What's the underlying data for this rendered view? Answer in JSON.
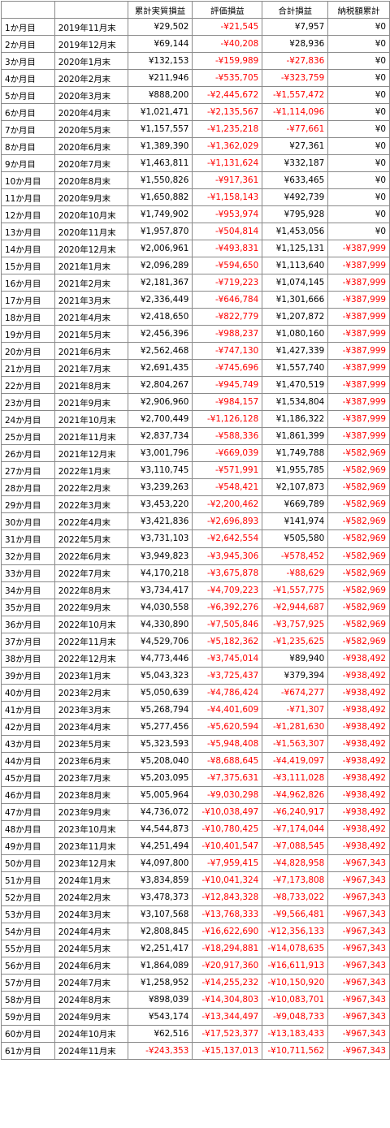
{
  "headers": [
    "",
    "",
    "累計実質損益",
    "評価損益",
    "合計損益",
    "納税額累計"
  ],
  "rows": [
    [
      "1か月目",
      "2019年11月末",
      "¥29,502",
      "-¥21,545",
      "¥7,957",
      "¥0"
    ],
    [
      "2か月目",
      "2019年12月末",
      "¥69,144",
      "-¥40,208",
      "¥28,936",
      "¥0"
    ],
    [
      "3か月目",
      "2020年1月末",
      "¥132,153",
      "-¥159,989",
      "-¥27,836",
      "¥0"
    ],
    [
      "4か月目",
      "2020年2月末",
      "¥211,946",
      "-¥535,705",
      "-¥323,759",
      "¥0"
    ],
    [
      "5か月目",
      "2020年3月末",
      "¥888,200",
      "-¥2,445,672",
      "-¥1,557,472",
      "¥0"
    ],
    [
      "6か月目",
      "2020年4月末",
      "¥1,021,471",
      "-¥2,135,567",
      "-¥1,114,096",
      "¥0"
    ],
    [
      "7か月目",
      "2020年5月末",
      "¥1,157,557",
      "-¥1,235,218",
      "-¥77,661",
      "¥0"
    ],
    [
      "8か月目",
      "2020年6月末",
      "¥1,389,390",
      "-¥1,362,029",
      "¥27,361",
      "¥0"
    ],
    [
      "9か月目",
      "2020年7月末",
      "¥1,463,811",
      "-¥1,131,624",
      "¥332,187",
      "¥0"
    ],
    [
      "10か月目",
      "2020年8月末",
      "¥1,550,826",
      "-¥917,361",
      "¥633,465",
      "¥0"
    ],
    [
      "11か月目",
      "2020年9月末",
      "¥1,650,882",
      "-¥1,158,143",
      "¥492,739",
      "¥0"
    ],
    [
      "12か月目",
      "2020年10月末",
      "¥1,749,902",
      "-¥953,974",
      "¥795,928",
      "¥0"
    ],
    [
      "13か月目",
      "2020年11月末",
      "¥1,957,870",
      "-¥504,814",
      "¥1,453,056",
      "¥0"
    ],
    [
      "14か月目",
      "2020年12月末",
      "¥2,006,961",
      "-¥493,831",
      "¥1,125,131",
      "-¥387,999"
    ],
    [
      "15か月目",
      "2021年1月末",
      "¥2,096,289",
      "-¥594,650",
      "¥1,113,640",
      "-¥387,999"
    ],
    [
      "16か月目",
      "2021年2月末",
      "¥2,181,367",
      "-¥719,223",
      "¥1,074,145",
      "-¥387,999"
    ],
    [
      "17か月目",
      "2021年3月末",
      "¥2,336,449",
      "-¥646,784",
      "¥1,301,666",
      "-¥387,999"
    ],
    [
      "18か月目",
      "2021年4月末",
      "¥2,418,650",
      "-¥822,779",
      "¥1,207,872",
      "-¥387,999"
    ],
    [
      "19か月目",
      "2021年5月末",
      "¥2,456,396",
      "-¥988,237",
      "¥1,080,160",
      "-¥387,999"
    ],
    [
      "20か月目",
      "2021年6月末",
      "¥2,562,468",
      "-¥747,130",
      "¥1,427,339",
      "-¥387,999"
    ],
    [
      "21か月目",
      "2021年7月末",
      "¥2,691,435",
      "-¥745,696",
      "¥1,557,740",
      "-¥387,999"
    ],
    [
      "22か月目",
      "2021年8月末",
      "¥2,804,267",
      "-¥945,749",
      "¥1,470,519",
      "-¥387,999"
    ],
    [
      "23か月目",
      "2021年9月末",
      "¥2,906,960",
      "-¥984,157",
      "¥1,534,804",
      "-¥387,999"
    ],
    [
      "24か月目",
      "2021年10月末",
      "¥2,700,449",
      "-¥1,126,128",
      "¥1,186,322",
      "-¥387,999"
    ],
    [
      "25か月目",
      "2021年11月末",
      "¥2,837,734",
      "-¥588,336",
      "¥1,861,399",
      "-¥387,999"
    ],
    [
      "26か月目",
      "2021年12月末",
      "¥3,001,796",
      "-¥669,039",
      "¥1,749,788",
      "-¥582,969"
    ],
    [
      "27か月目",
      "2022年1月末",
      "¥3,110,745",
      "-¥571,991",
      "¥1,955,785",
      "-¥582,969"
    ],
    [
      "28か月目",
      "2022年2月末",
      "¥3,239,263",
      "-¥548,421",
      "¥2,107,873",
      "-¥582,969"
    ],
    [
      "29か月目",
      "2022年3月末",
      "¥3,453,220",
      "-¥2,200,462",
      "¥669,789",
      "-¥582,969"
    ],
    [
      "30か月目",
      "2022年4月末",
      "¥3,421,836",
      "-¥2,696,893",
      "¥141,974",
      "-¥582,969"
    ],
    [
      "31か月目",
      "2022年5月末",
      "¥3,731,103",
      "-¥2,642,554",
      "¥505,580",
      "-¥582,969"
    ],
    [
      "32か月目",
      "2022年6月末",
      "¥3,949,823",
      "-¥3,945,306",
      "-¥578,452",
      "-¥582,969"
    ],
    [
      "33か月目",
      "2022年7月末",
      "¥4,170,218",
      "-¥3,675,878",
      "-¥88,629",
      "-¥582,969"
    ],
    [
      "34か月目",
      "2022年8月末",
      "¥3,734,417",
      "-¥4,709,223",
      "-¥1,557,775",
      "-¥582,969"
    ],
    [
      "35か月目",
      "2022年9月末",
      "¥4,030,558",
      "-¥6,392,276",
      "-¥2,944,687",
      "-¥582,969"
    ],
    [
      "36か月目",
      "2022年10月末",
      "¥4,330,890",
      "-¥7,505,846",
      "-¥3,757,925",
      "-¥582,969"
    ],
    [
      "37か月目",
      "2022年11月末",
      "¥4,529,706",
      "-¥5,182,362",
      "-¥1,235,625",
      "-¥582,969"
    ],
    [
      "38か月目",
      "2022年12月末",
      "¥4,773,446",
      "-¥3,745,014",
      "¥89,940",
      "-¥938,492"
    ],
    [
      "39か月目",
      "2023年1月末",
      "¥5,043,323",
      "-¥3,725,437",
      "¥379,394",
      "-¥938,492"
    ],
    [
      "40か月目",
      "2023年2月末",
      "¥5,050,639",
      "-¥4,786,424",
      "-¥674,277",
      "-¥938,492"
    ],
    [
      "41か月目",
      "2023年3月末",
      "¥5,268,794",
      "-¥4,401,609",
      "-¥71,307",
      "-¥938,492"
    ],
    [
      "42か月目",
      "2023年4月末",
      "¥5,277,456",
      "-¥5,620,594",
      "-¥1,281,630",
      "-¥938,492"
    ],
    [
      "43か月目",
      "2023年5月末",
      "¥5,323,593",
      "-¥5,948,408",
      "-¥1,563,307",
      "-¥938,492"
    ],
    [
      "44か月目",
      "2023年6月末",
      "¥5,208,040",
      "-¥8,688,645",
      "-¥4,419,097",
      "-¥938,492"
    ],
    [
      "45か月目",
      "2023年7月末",
      "¥5,203,095",
      "-¥7,375,631",
      "-¥3,111,028",
      "-¥938,492"
    ],
    [
      "46か月目",
      "2023年8月末",
      "¥5,005,964",
      "-¥9,030,298",
      "-¥4,962,826",
      "-¥938,492"
    ],
    [
      "47か月目",
      "2023年9月末",
      "¥4,736,072",
      "-¥10,038,497",
      "-¥6,240,917",
      "-¥938,492"
    ],
    [
      "48か月目",
      "2023年10月末",
      "¥4,544,873",
      "-¥10,780,425",
      "-¥7,174,044",
      "-¥938,492"
    ],
    [
      "49か月目",
      "2023年11月末",
      "¥4,251,494",
      "-¥10,401,547",
      "-¥7,088,545",
      "-¥938,492"
    ],
    [
      "50か月目",
      "2023年12月末",
      "¥4,097,800",
      "-¥7,959,415",
      "-¥4,828,958",
      "-¥967,343"
    ],
    [
      "51か月目",
      "2024年1月末",
      "¥3,834,859",
      "-¥10,041,324",
      "-¥7,173,808",
      "-¥967,343"
    ],
    [
      "52か月目",
      "2024年2月末",
      "¥3,478,373",
      "-¥12,843,328",
      "-¥8,733,022",
      "-¥967,343"
    ],
    [
      "53か月目",
      "2024年3月末",
      "¥3,107,568",
      "-¥13,768,333",
      "-¥9,566,481",
      "-¥967,343"
    ],
    [
      "54か月目",
      "2024年4月末",
      "¥2,808,845",
      "-¥16,622,690",
      "-¥12,356,133",
      "-¥967,343"
    ],
    [
      "55か月目",
      "2024年5月末",
      "¥2,251,417",
      "-¥18,294,881",
      "-¥14,078,635",
      "-¥967,343"
    ],
    [
      "56か月目",
      "2024年6月末",
      "¥1,864,089",
      "-¥20,917,360",
      "-¥16,611,913",
      "-¥967,343"
    ],
    [
      "57か月目",
      "2024年7月末",
      "¥1,258,952",
      "-¥14,255,232",
      "-¥10,150,920",
      "-¥967,343"
    ],
    [
      "58か月目",
      "2024年8月末",
      "¥898,039",
      "-¥14,304,803",
      "-¥10,083,701",
      "-¥967,343"
    ],
    [
      "59か月目",
      "2024年9月末",
      "¥543,174",
      "-¥13,344,497",
      "-¥9,048,733",
      "-¥967,343"
    ],
    [
      "60か月目",
      "2024年10月末",
      "¥62,516",
      "-¥17,523,377",
      "-¥13,183,433",
      "-¥967,343"
    ],
    [
      "61か月目",
      "2024年11月末",
      "-¥243,353",
      "-¥15,137,013",
      "-¥10,711,562",
      "-¥967,343"
    ]
  ],
  "colors": {
    "negative": "#ff0000",
    "text": "#000000",
    "border": "#8a8a8a"
  }
}
